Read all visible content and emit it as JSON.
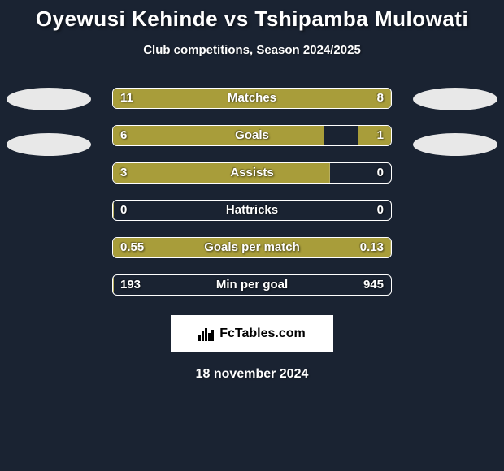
{
  "title": "Oyewusi Kehinde vs Tshipamba Mulowati",
  "subtitle": "Club competitions, Season 2024/2025",
  "date": "18 november 2024",
  "logo_text": "FcTables.com",
  "background_color": "#1a2332",
  "bar_fill_color": "#a89d3a",
  "bar_track_width": 344,
  "avatar_color": "#e8e8e8",
  "stats": [
    {
      "label": "Matches",
      "left_val": "11",
      "right_val": "8",
      "left_pct": 100,
      "right_pct": 0
    },
    {
      "label": "Goals",
      "left_val": "6",
      "right_val": "1",
      "left_pct": 76,
      "right_pct": 12
    },
    {
      "label": "Assists",
      "left_val": "3",
      "right_val": "0",
      "left_pct": 78,
      "right_pct": 0
    },
    {
      "label": "Hattricks",
      "left_val": "0",
      "right_val": "0",
      "left_pct": 0,
      "right_pct": 0
    },
    {
      "label": "Goals per match",
      "left_val": "0.55",
      "right_val": "0.13",
      "left_pct": 100,
      "right_pct": 0
    },
    {
      "label": "Min per goal",
      "left_val": "193",
      "right_val": "945",
      "left_pct": 0,
      "right_pct": 0
    }
  ]
}
